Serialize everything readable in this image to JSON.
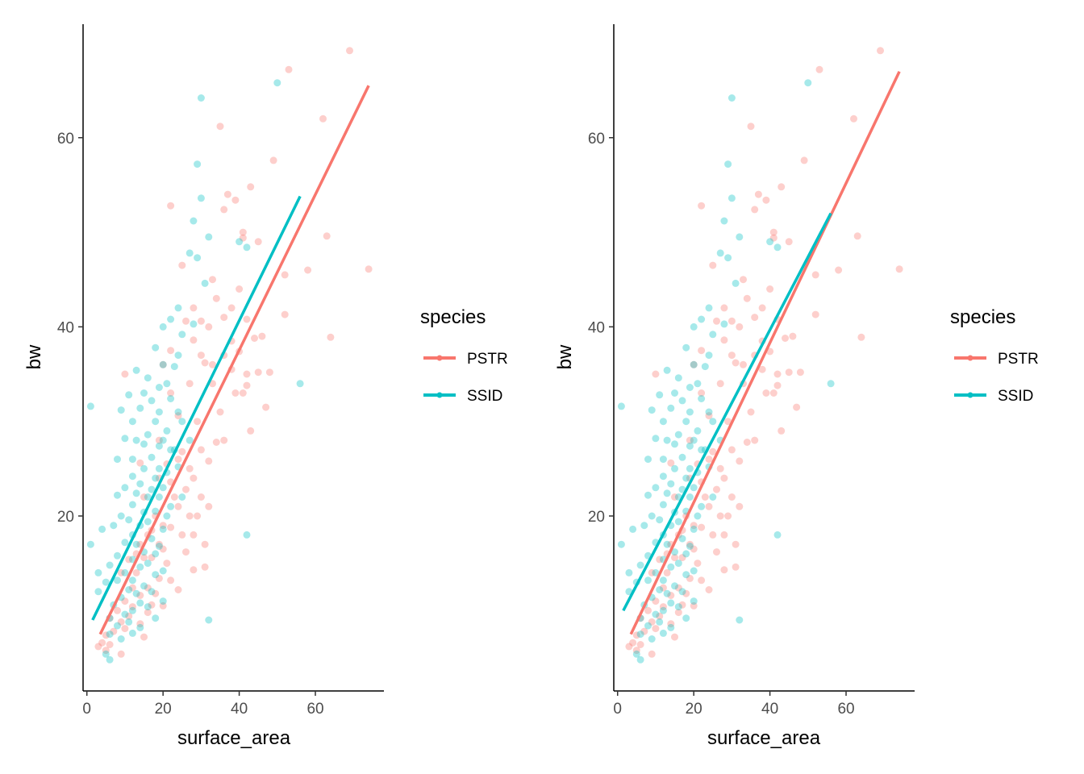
{
  "chart_data": [
    {
      "type": "scatter",
      "panel": "left",
      "xlabel": "surface_area",
      "ylabel": "bw",
      "xlim": [
        -1,
        78
      ],
      "ylim": [
        1.5,
        72
      ],
      "x_ticks": [
        0,
        20,
        40,
        60
      ],
      "y_ticks": [
        20,
        40,
        60
      ],
      "legend": {
        "title": "species",
        "position": "right"
      },
      "series": [
        {
          "name": "PSTR",
          "color": "#F8766D",
          "fit": {
            "x": [
              3.5,
              74
            ],
            "y": [
              7.5,
              65.5
            ]
          },
          "points": [
            [
              69,
              69.2
            ],
            [
              53,
              67.2
            ],
            [
              62,
              62
            ],
            [
              35,
              61.2
            ],
            [
              49,
              57.6
            ],
            [
              22,
              52.8
            ],
            [
              43,
              54.8
            ],
            [
              37,
              54
            ],
            [
              39,
              53.4
            ],
            [
              36,
              52.4
            ],
            [
              41,
              50
            ],
            [
              41,
              49.4
            ],
            [
              63,
              49.6
            ],
            [
              45,
              49
            ],
            [
              74,
              46.1
            ],
            [
              58,
              46
            ],
            [
              52,
              45.5
            ],
            [
              25,
              46.5
            ],
            [
              33,
              45
            ],
            [
              40,
              44
            ],
            [
              34,
              43
            ],
            [
              38,
              42
            ],
            [
              28,
              42
            ],
            [
              36,
              41
            ],
            [
              42,
              40.8
            ],
            [
              52,
              41.3
            ],
            [
              30,
              40.6
            ],
            [
              26,
              40.6
            ],
            [
              32,
              40
            ],
            [
              46,
              39
            ],
            [
              64,
              38.9
            ],
            [
              28,
              38.6
            ],
            [
              44,
              38.8
            ],
            [
              38,
              38.5
            ],
            [
              36,
              37
            ],
            [
              40,
              37.4
            ],
            [
              30,
              37
            ],
            [
              22,
              37.5
            ],
            [
              33,
              36
            ],
            [
              31,
              36.2
            ],
            [
              20,
              36
            ],
            [
              38,
              35.5
            ],
            [
              45,
              35.2
            ],
            [
              42,
              35
            ],
            [
              10,
              35
            ],
            [
              48,
              35.2
            ],
            [
              27,
              34
            ],
            [
              33,
              34
            ],
            [
              42,
              33.8
            ],
            [
              41,
              33
            ],
            [
              39,
              33
            ],
            [
              22,
              33
            ],
            [
              47,
              31.5
            ],
            [
              35,
              31
            ],
            [
              24,
              30.6
            ],
            [
              29,
              30
            ],
            [
              43,
              29
            ],
            [
              36,
              28
            ],
            [
              34,
              27.8
            ],
            [
              19,
              28
            ],
            [
              30,
              27
            ],
            [
              25,
              26.8
            ],
            [
              24,
              26
            ],
            [
              32,
              25.8
            ],
            [
              21,
              25.5
            ],
            [
              27,
              25
            ],
            [
              14,
              25.6
            ],
            [
              28,
              24
            ],
            [
              19,
              24
            ],
            [
              22,
              23.6
            ],
            [
              26,
              22.8
            ],
            [
              30,
              22
            ],
            [
              23,
              22
            ],
            [
              15,
              22
            ],
            [
              24,
              21
            ],
            [
              32,
              21
            ],
            [
              27,
              20
            ],
            [
              29,
              20
            ],
            [
              18,
              20
            ],
            [
              20,
              19
            ],
            [
              17,
              18.5
            ],
            [
              22,
              18.8
            ],
            [
              16,
              18
            ],
            [
              25,
              18
            ],
            [
              28,
              18
            ],
            [
              14,
              17
            ],
            [
              19,
              17
            ],
            [
              31,
              17
            ],
            [
              20,
              16.5
            ],
            [
              26,
              16.2
            ],
            [
              13,
              16
            ],
            [
              15,
              15.6
            ],
            [
              11,
              15.4
            ],
            [
              17,
              15.6
            ],
            [
              21,
              15
            ],
            [
              31,
              14.6
            ],
            [
              28,
              14.3
            ],
            [
              9,
              14
            ],
            [
              13,
              14
            ],
            [
              19,
              13.4
            ],
            [
              22,
              13.2
            ],
            [
              12,
              12.4
            ],
            [
              16,
              12.4
            ],
            [
              24,
              12.2
            ],
            [
              14,
              11.6
            ],
            [
              10,
              11
            ],
            [
              18,
              11.8
            ],
            [
              17,
              10.6
            ],
            [
              8,
              10
            ],
            [
              12,
              10.4
            ],
            [
              20,
              10.5
            ],
            [
              11,
              9.4
            ],
            [
              16,
              9.8
            ],
            [
              6,
              9.2
            ],
            [
              9,
              8.8
            ],
            [
              14,
              8.6
            ],
            [
              7,
              7.8
            ],
            [
              10,
              8.1
            ],
            [
              5,
              7.4
            ],
            [
              4,
              6.6
            ],
            [
              6,
              6.4
            ],
            [
              3,
              6.2
            ],
            [
              5,
              5.8
            ],
            [
              9,
              5.4
            ],
            [
              15,
              7.2
            ]
          ]
        },
        {
          "name": "SSID",
          "color": "#00BFC4",
          "fit": {
            "x": [
              1.5,
              56
            ],
            "y": [
              9,
              53.8
            ]
          },
          "points": [
            [
              30,
              64.2
            ],
            [
              50,
              65.8
            ],
            [
              29,
              57.2
            ],
            [
              30,
              53.6
            ],
            [
              28,
              51.2
            ],
            [
              32,
              49.5
            ],
            [
              40,
              49
            ],
            [
              27,
              47.8
            ],
            [
              29,
              47.3
            ],
            [
              42,
              48.4
            ],
            [
              31,
              44.6
            ],
            [
              24,
              42
            ],
            [
              22,
              40.8
            ],
            [
              20,
              40
            ],
            [
              28,
              40.3
            ],
            [
              25,
              39.2
            ],
            [
              18,
              37.8
            ],
            [
              24,
              37
            ],
            [
              20,
              36
            ],
            [
              23,
              35.8
            ],
            [
              13,
              35.4
            ],
            [
              16,
              34.6
            ],
            [
              21,
              34
            ],
            [
              19,
              33.6
            ],
            [
              11,
              32.8
            ],
            [
              15,
              33
            ],
            [
              17,
              32.2
            ],
            [
              22,
              32.4
            ],
            [
              14,
              31.4
            ],
            [
              1,
              31.6
            ],
            [
              9,
              31.2
            ],
            [
              19,
              31
            ],
            [
              24,
              31
            ],
            [
              18,
              30
            ],
            [
              12,
              30
            ],
            [
              25,
              30
            ],
            [
              21,
              29
            ],
            [
              16,
              28.6
            ],
            [
              10,
              28.2
            ],
            [
              13,
              28
            ],
            [
              27,
              28
            ],
            [
              20,
              28
            ],
            [
              15,
              27.6
            ],
            [
              19,
              27.4
            ],
            [
              23,
              27
            ],
            [
              22,
              27
            ],
            [
              17,
              26.2
            ],
            [
              12,
              26
            ],
            [
              8,
              26
            ],
            [
              19,
              25
            ],
            [
              24,
              25.2
            ],
            [
              15,
              25
            ],
            [
              12,
              24.2
            ],
            [
              21,
              24.6
            ],
            [
              18,
              24
            ],
            [
              14,
              23.4
            ],
            [
              10,
              23
            ],
            [
              20,
              23
            ],
            [
              17,
              22.8
            ],
            [
              25,
              22
            ],
            [
              13,
              22.4
            ],
            [
              16,
              22
            ],
            [
              19,
              22
            ],
            [
              8,
              22.2
            ],
            [
              22,
              21
            ],
            [
              12,
              21.2
            ],
            [
              15,
              20.4
            ],
            [
              18,
              20.5
            ],
            [
              9,
              20
            ],
            [
              21,
              20
            ],
            [
              11,
              19.6
            ],
            [
              14,
              19
            ],
            [
              16,
              19.4
            ],
            [
              7,
              19
            ],
            [
              20,
              18.6
            ],
            [
              12,
              18
            ],
            [
              4,
              18.6
            ],
            [
              17,
              17.6
            ],
            [
              42,
              18
            ],
            [
              13,
              17
            ],
            [
              10,
              17.2
            ],
            [
              1,
              17
            ],
            [
              19,
              16.8
            ],
            [
              15,
              16.2
            ],
            [
              18,
              16
            ],
            [
              8,
              15.8
            ],
            [
              12,
              15.4
            ],
            [
              16,
              15
            ],
            [
              6,
              14.8
            ],
            [
              14,
              14.6
            ],
            [
              20,
              14.2
            ],
            [
              10,
              14
            ],
            [
              3,
              14
            ],
            [
              18,
              13.8
            ],
            [
              12,
              13.2
            ],
            [
              8,
              13.2
            ],
            [
              5,
              13
            ],
            [
              15,
              12.6
            ],
            [
              17,
              12
            ],
            [
              11,
              12.2
            ],
            [
              3,
              12
            ],
            [
              13,
              11.8
            ],
            [
              9,
              11.4
            ],
            [
              20,
              11
            ],
            [
              14,
              10.8
            ],
            [
              7,
              10.6
            ],
            [
              16,
              10.4
            ],
            [
              12,
              10
            ],
            [
              10,
              9.6
            ],
            [
              6,
              9.2
            ],
            [
              32,
              9
            ],
            [
              18,
              9.2
            ],
            [
              8,
              8.4
            ],
            [
              11,
              8.8
            ],
            [
              14,
              8.2
            ],
            [
              6,
              7.5
            ],
            [
              9,
              7
            ],
            [
              12,
              7.6
            ],
            [
              5,
              5.4
            ],
            [
              6,
              4.8
            ],
            [
              56,
              34
            ]
          ]
        }
      ]
    },
    {
      "type": "scatter",
      "panel": "right",
      "xlabel": "surface_area",
      "ylabel": "bw",
      "xlim": [
        -1,
        78
      ],
      "ylim": [
        1.5,
        72
      ],
      "x_ticks": [
        0,
        20,
        40,
        60
      ],
      "y_ticks": [
        20,
        40,
        60
      ],
      "legend": {
        "title": "species",
        "position": "right"
      },
      "series": [
        {
          "name": "PSTR",
          "color": "#F8766D",
          "fit": {
            "x": [
              3.5,
              74
            ],
            "y": [
              7.5,
              67
            ]
          },
          "points": "same as left panel"
        },
        {
          "name": "SSID",
          "color": "#00BFC4",
          "fit": {
            "x": [
              1.5,
              56
            ],
            "y": [
              10,
              52
            ]
          },
          "points": "same as left panel"
        }
      ]
    }
  ]
}
